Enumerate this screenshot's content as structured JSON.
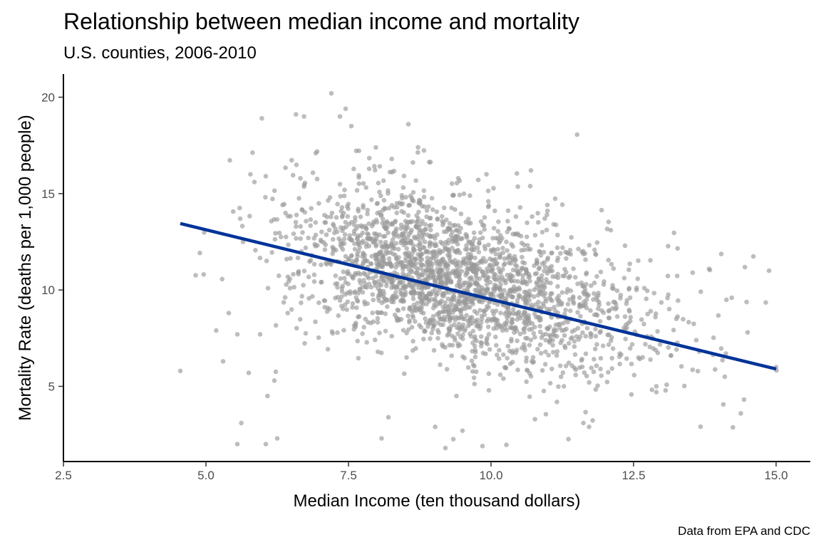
{
  "chart_data": {
    "type": "scatter",
    "title": "Relationship between median income and mortality",
    "subtitle": "U.S. counties, 2006-2010",
    "xlabel": "Median Income (ten thousand dollars)",
    "ylabel": "Mortality Rate (deaths per 1,000 people)",
    "caption": "Data from EPA and CDC",
    "xlim": [
      2.5,
      15.6
    ],
    "ylim": [
      1.1,
      21.2
    ],
    "x_ticks": [
      2.5,
      5.0,
      7.5,
      10.0,
      12.5,
      15.0
    ],
    "x_tick_labels": [
      "2.5",
      "5.0",
      "7.5",
      "10.0",
      "12.5",
      "15.0"
    ],
    "y_ticks": [
      5,
      10,
      15,
      20
    ],
    "y_tick_labels": [
      "5",
      "10",
      "15",
      "20"
    ],
    "grid": false,
    "legend": "none",
    "point_color": "#999999",
    "line_color": "#003399",
    "points_x": [
      4.55,
      5.62,
      5.98,
      6.72,
      7.2,
      7.45,
      7.55,
      7.35,
      8.55,
      8.72,
      9.92,
      10.7,
      5.78,
      6.05,
      5.85,
      5.4,
      5.3,
      5.18,
      5.55,
      5.95,
      5.75,
      6.2,
      6.08,
      5.55,
      6.05,
      6.25,
      5.65,
      7.02,
      8.08,
      9.2,
      9.85,
      11.62,
      11.72,
      13.25,
      12.35,
      14.5,
      14.12,
      14.1,
      15.0,
      13.6,
      13.65,
      12.9,
      12.9,
      10.9,
      9.5,
      9.02,
      8.2,
      12.1
    ],
    "points_y": [
      5.8,
      3.1,
      18.9,
      19.0,
      20.2,
      19.4,
      18.5,
      19.0,
      18.6,
      17.4,
      16.0,
      16.2,
      16.0,
      15.9,
      15.6,
      8.8,
      6.3,
      7.9,
      7.7,
      7.7,
      5.7,
      5.3,
      4.5,
      2.0,
      2.0,
      2.3,
      12.5,
      10.4,
      2.3,
      1.8,
      1.9,
      3.1,
      2.9,
      8.5,
      12.3,
      7.8,
      6.7,
      5.5,
      6.0,
      7.4,
      6.8,
      5.0,
      4.7,
      13.0,
      2.7,
      2.9,
      3.4,
      13.1
    ],
    "density_cores": [
      {
        "x": 9.2,
        "y": 10.6,
        "sx": 1.15,
        "sy": 1.9,
        "count": 1150
      },
      {
        "x": 8.3,
        "y": 11.8,
        "sx": 1.1,
        "sy": 2.0,
        "count": 450
      },
      {
        "x": 11.0,
        "y": 8.7,
        "sx": 1.3,
        "sy": 1.8,
        "count": 450
      },
      {
        "x": 10.0,
        "y": 10.0,
        "sx": 2.2,
        "sy": 2.6,
        "count": 300
      }
    ],
    "fit_line": {
      "x": [
        4.55,
        15.0
      ],
      "y": [
        13.45,
        5.9
      ]
    }
  }
}
